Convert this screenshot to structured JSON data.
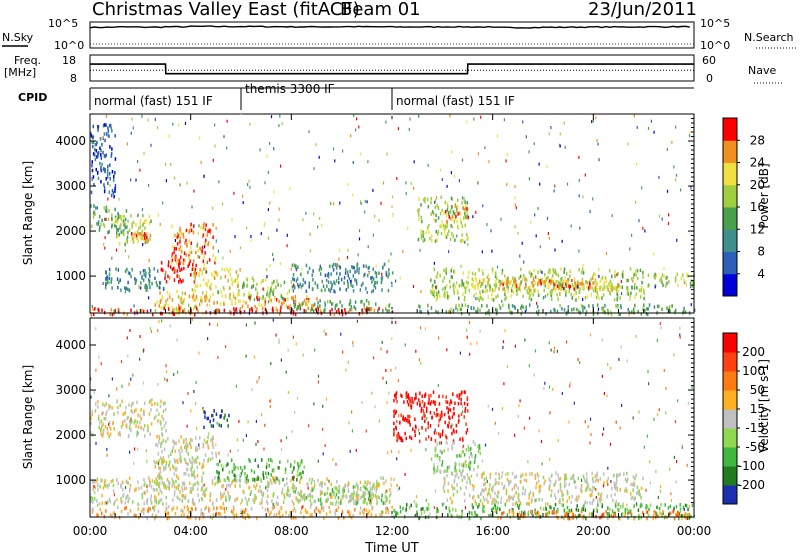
{
  "header": {
    "title": "Christmas Valley East (fitACF)",
    "beam": "Beam 01",
    "date": "23/Jun/2011"
  },
  "nsky_panel": {
    "left_label": "N.Sky",
    "left_ticks": [
      "10^5",
      "10^0"
    ],
    "right_ticks": [
      "10^5",
      "10^0"
    ],
    "right_label": "N.Search"
  },
  "freq_panel": {
    "left_label_1": "Freq.",
    "left_label_2": "[MHz]",
    "left_ticks": [
      "18",
      "8"
    ],
    "right_ticks": [
      "60",
      "0"
    ],
    "right_label": "Nave"
  },
  "cpid": {
    "label": "CPID",
    "segments": [
      {
        "text": "normal (fast) 151 IF",
        "start_hr": 0.0,
        "end_hr": 6.0
      },
      {
        "text": "themis 3300 IF",
        "start_hr": 6.0,
        "end_hr": 12.0
      },
      {
        "text": "normal (fast) 151 IF",
        "start_hr": 12.0,
        "end_hr": 24.0
      }
    ]
  },
  "axes": {
    "ylabel": "Slant Range [km]",
    "xlabel": "Time UT",
    "yticks": [
      "1000",
      "2000",
      "3000",
      "4000"
    ],
    "xticks": [
      "00:00",
      "04:00",
      "08:00",
      "12:00",
      "16:00",
      "20:00",
      "00:00"
    ]
  },
  "power_scale": {
    "label": "Power [dB]",
    "ticks": [
      "4",
      "8",
      "12",
      "16",
      "20",
      "24",
      "28"
    ],
    "colors": [
      "#0000d8",
      "#2b5fb8",
      "#3f8f8f",
      "#4aa04a",
      "#9fcf3f",
      "#f0e040",
      "#f09020",
      "#ff0000"
    ]
  },
  "velocity_scale": {
    "label": "Velocity [m s-1]",
    "ticks": [
      "200",
      "100",
      "50",
      "15",
      "-15",
      "-50",
      "-100",
      "-200"
    ],
    "colors": [
      "#1c2fb0",
      "#1f7d1f",
      "#3fb83f",
      "#8fd84f",
      "#c0c0c0",
      "#ffb020",
      "#ff7a10",
      "#ff4010",
      "#ff0000"
    ]
  },
  "chart_data": [
    {
      "type": "line",
      "title": "N.Sky / N.Search",
      "x": [
        0,
        1,
        2,
        3,
        4,
        5,
        6,
        7,
        8,
        9,
        10,
        11,
        12,
        13,
        14,
        15,
        16,
        17,
        18,
        19,
        20,
        21,
        22,
        23,
        24
      ],
      "series": [
        {
          "name": "N.Sky",
          "scale": "log",
          "values": [
            10000,
            12000,
            11000,
            13000,
            16000,
            15000,
            15000,
            14000,
            13000,
            13000,
            14000,
            13000,
            12000,
            12000,
            13000,
            12000,
            9000,
            9000,
            10000,
            11000,
            12000,
            12000,
            13000,
            14000,
            15000
          ]
        }
      ]
    },
    {
      "type": "line",
      "title": "Freq. [MHz] / Nave",
      "x": [
        0,
        3.0,
        3.01,
        12.0,
        12.01,
        15.0,
        15.01,
        24
      ],
      "series": [
        {
          "name": "Freq.",
          "unit": "MHz",
          "values": [
            14.5,
            14.5,
            10.8,
            10.8,
            10.8,
            10.8,
            14.5,
            14.5
          ]
        },
        {
          "name": "Nave",
          "values": [
            25,
            25,
            25,
            25,
            25,
            25,
            25,
            25
          ]
        }
      ],
      "ylim": [
        8,
        18
      ]
    },
    {
      "type": "heatmap",
      "title": "Power",
      "xlabel": "Time UT",
      "ylabel": "Slant Range [km]",
      "xlim": [
        0,
        24
      ],
      "ylim": [
        180,
        4600
      ],
      "colorbar": "Power [dB]",
      "regions": [
        {
          "t": [
            0.0,
            1.5
          ],
          "r": [
            2000,
            2600
          ],
          "level": 3
        },
        {
          "t": [
            1.0,
            2.4
          ],
          "r": [
            1700,
            2400
          ],
          "level": 4
        },
        {
          "t": [
            1.6,
            2.4
          ],
          "r": [
            1800,
            2000
          ],
          "level": 6
        },
        {
          "t": [
            0.0,
            1.0
          ],
          "r": [
            2800,
            4400
          ],
          "level": 1
        },
        {
          "t": [
            0.5,
            3.0
          ],
          "r": [
            700,
            1200
          ],
          "level": 2
        },
        {
          "t": [
            2.8,
            4.2
          ],
          "r": [
            900,
            1400
          ],
          "level": 7
        },
        {
          "t": [
            3.2,
            5.0
          ],
          "r": [
            1300,
            2200
          ],
          "level": 6
        },
        {
          "t": [
            2.5,
            4.5
          ],
          "r": [
            200,
            700
          ],
          "level": 5
        },
        {
          "t": [
            4.0,
            6.0
          ],
          "r": [
            400,
            1200
          ],
          "level": 5
        },
        {
          "t": [
            6.0,
            8.0
          ],
          "r": [
            500,
            1000
          ],
          "level": 4
        },
        {
          "t": [
            6.0,
            9.0
          ],
          "r": [
            300,
            600
          ],
          "level": 6
        },
        {
          "t": [
            8.0,
            12.0
          ],
          "r": [
            700,
            1300
          ],
          "level": 2
        },
        {
          "t": [
            8.0,
            12.0
          ],
          "r": [
            250,
            500
          ],
          "level": 3
        },
        {
          "t": [
            0.0,
            12.0
          ],
          "r": [
            180,
            320
          ],
          "level": 7
        },
        {
          "t": [
            13.0,
            15.0
          ],
          "r": [
            1800,
            2800
          ],
          "level": 4
        },
        {
          "t": [
            14.0,
            15.0
          ],
          "r": [
            2200,
            2600
          ],
          "level": 6
        },
        {
          "t": [
            13.5,
            22.0
          ],
          "r": [
            500,
            1200
          ],
          "level": 4
        },
        {
          "t": [
            15.0,
            21.0
          ],
          "r": [
            700,
            1000
          ],
          "level": 5
        },
        {
          "t": [
            16.0,
            20.0
          ],
          "r": [
            750,
            950
          ],
          "level": 6
        },
        {
          "t": [
            13.0,
            24.0
          ],
          "r": [
            180,
            400
          ],
          "level": 3
        },
        {
          "t": [
            22.0,
            24.0
          ],
          "r": [
            800,
            1100
          ],
          "level": 4
        }
      ]
    },
    {
      "type": "heatmap",
      "title": "Velocity",
      "xlabel": "Time UT",
      "ylabel": "Slant Range [km]",
      "xlim": [
        0,
        24
      ],
      "ylim": [
        180,
        4600
      ],
      "colorbar": "Velocity [m s-1]",
      "regions": [
        {
          "t": [
            0.0,
            3.0
          ],
          "r": [
            2000,
            2800
          ],
          "level": 4
        },
        {
          "t": [
            2.5,
            5.0
          ],
          "r": [
            1400,
            2000
          ],
          "level": 4
        },
        {
          "t": [
            2.5,
            4.5
          ],
          "r": [
            800,
            1500
          ],
          "level": 4
        },
        {
          "t": [
            4.5,
            5.5
          ],
          "r": [
            2200,
            2600
          ],
          "level": 0
        },
        {
          "t": [
            0.0,
            12.0
          ],
          "r": [
            500,
            1100
          ],
          "level": 4
        },
        {
          "t": [
            5.0,
            8.5
          ],
          "r": [
            1000,
            1500
          ],
          "level": 2
        },
        {
          "t": [
            8.0,
            12.0
          ],
          "r": [
            500,
            900
          ],
          "level": 3
        },
        {
          "t": [
            0.0,
            12.0
          ],
          "r": [
            180,
            450
          ],
          "level": 5
        },
        {
          "t": [
            12.0,
            15.0
          ],
          "r": [
            1900,
            3000
          ],
          "level": 8
        },
        {
          "t": [
            13.5,
            15.5
          ],
          "r": [
            1200,
            1900
          ],
          "level": 3
        },
        {
          "t": [
            14.0,
            22.0
          ],
          "r": [
            500,
            1200
          ],
          "level": 4
        },
        {
          "t": [
            12.0,
            24.0
          ],
          "r": [
            180,
            500
          ],
          "level": 2
        },
        {
          "t": [
            16.0,
            24.0
          ],
          "r": [
            180,
            350
          ],
          "level": 6
        }
      ]
    }
  ]
}
